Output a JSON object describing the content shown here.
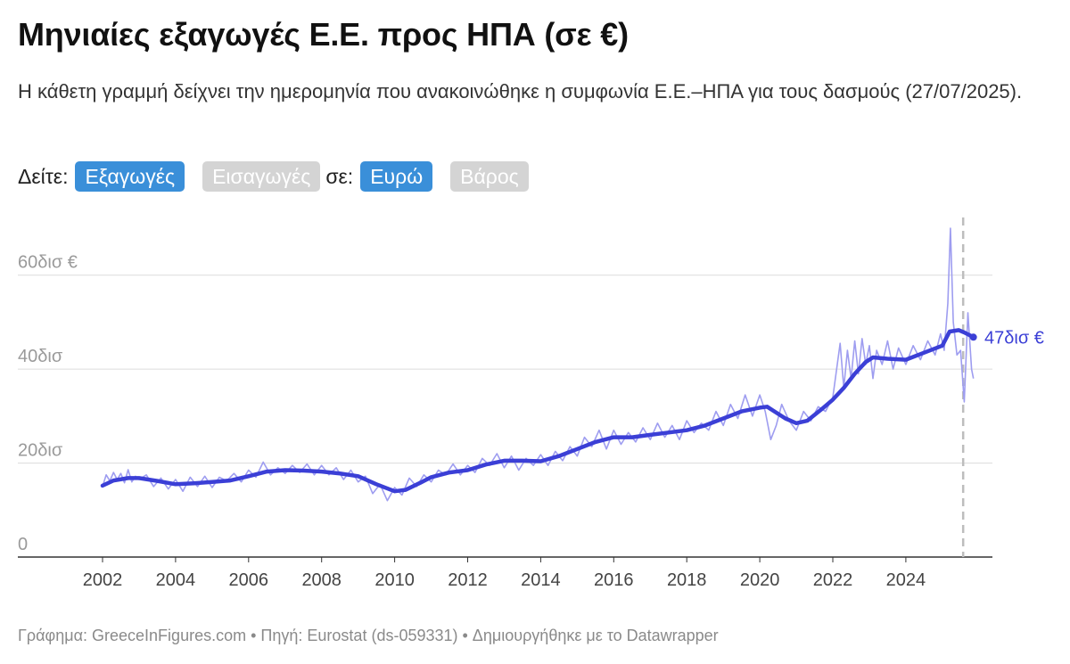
{
  "header": {
    "title": "Μηνιαίες εξαγωγές Ε.Ε. προς ΗΠΑ (σε €)",
    "subtitle": "Η κάθετη γραμμή δείχνει την ημερομηνία που ανακοινώθηκε η συμφωνία Ε.Ε.–ΗΠΑ για τους δασμούς (27/07/2025)."
  },
  "controls": {
    "see_label": "Δείτε:",
    "exports_label": "Εξαγωγές",
    "imports_label": "Εισαγωγές",
    "in_label": "σε:",
    "euro_label": "Ευρώ",
    "weight_label": "Βάρος"
  },
  "footer": {
    "text": "Γράφημα: GreeceInFigures.com • Πηγή: Eurostat (ds-059331) • Δημιουργήθηκε με το Datawrapper"
  },
  "colors": {
    "line": "#3b3fd6",
    "line_light": "#9e9df0",
    "active_button": "#3a8fd9",
    "inactive_button": "#d4d4d4"
  },
  "chart_data": {
    "type": "line",
    "xlim": [
      2000.1,
      2026.5
    ],
    "ylim": [
      0,
      70
    ],
    "y_ticks": [
      {
        "value": 0,
        "label": "0"
      },
      {
        "value": 20,
        "label": "20δισ"
      },
      {
        "value": 40,
        "label": "40δισ"
      },
      {
        "value": 60,
        "label": "60δισ €"
      }
    ],
    "x_ticks": [
      {
        "value": 2002,
        "label": "2002"
      },
      {
        "value": 2004,
        "label": "2004"
      },
      {
        "value": 2006,
        "label": "2006"
      },
      {
        "value": 2008,
        "label": "2008"
      },
      {
        "value": 2010,
        "label": "2010"
      },
      {
        "value": 2012,
        "label": "2012"
      },
      {
        "value": 2014,
        "label": "2014"
      },
      {
        "value": 2016,
        "label": "2016"
      },
      {
        "value": 2018,
        "label": "2018"
      },
      {
        "value": 2020,
        "label": "2020"
      },
      {
        "value": 2022,
        "label": "2022"
      },
      {
        "value": 2024,
        "label": "2024"
      }
    ],
    "event_line": {
      "x": 2025.57,
      "date": "27/07/2025"
    },
    "end_label": "47δισ €",
    "series": [
      {
        "role": "trend",
        "points": [
          [
            2002.0,
            15.2
          ],
          [
            2002.3,
            16.3
          ],
          [
            2002.7,
            16.8
          ],
          [
            2003.0,
            16.8
          ],
          [
            2003.5,
            16.2
          ],
          [
            2004.0,
            15.5
          ],
          [
            2004.5,
            15.7
          ],
          [
            2005.0,
            16.0
          ],
          [
            2005.5,
            16.3
          ],
          [
            2006.0,
            17.2
          ],
          [
            2006.5,
            18.2
          ],
          [
            2007.0,
            18.5
          ],
          [
            2007.5,
            18.4
          ],
          [
            2008.0,
            18.2
          ],
          [
            2008.5,
            17.8
          ],
          [
            2009.0,
            17.2
          ],
          [
            2009.5,
            15.5
          ],
          [
            2010.0,
            14.0
          ],
          [
            2010.3,
            14.3
          ],
          [
            2010.7,
            15.8
          ],
          [
            2011.0,
            17.0
          ],
          [
            2011.5,
            18.0
          ],
          [
            2012.0,
            18.5
          ],
          [
            2012.5,
            19.7
          ],
          [
            2013.0,
            20.5
          ],
          [
            2013.5,
            20.5
          ],
          [
            2014.0,
            20.4
          ],
          [
            2014.5,
            21.5
          ],
          [
            2015.0,
            23.0
          ],
          [
            2015.5,
            24.5
          ],
          [
            2016.0,
            25.5
          ],
          [
            2016.5,
            25.5
          ],
          [
            2017.0,
            26.0
          ],
          [
            2017.5,
            26.5
          ],
          [
            2018.0,
            27.0
          ],
          [
            2018.5,
            28.0
          ],
          [
            2019.0,
            29.5
          ],
          [
            2019.5,
            31.0
          ],
          [
            2020.0,
            31.8
          ],
          [
            2020.2,
            32.0
          ],
          [
            2020.4,
            31.0
          ],
          [
            2020.7,
            29.5
          ],
          [
            2021.0,
            28.5
          ],
          [
            2021.3,
            29.0
          ],
          [
            2021.7,
            31.5
          ],
          [
            2022.0,
            33.5
          ],
          [
            2022.3,
            36.0
          ],
          [
            2022.6,
            39.0
          ],
          [
            2022.9,
            41.5
          ],
          [
            2023.1,
            42.5
          ],
          [
            2023.5,
            42.2
          ],
          [
            2024.0,
            42.0
          ],
          [
            2024.5,
            43.5
          ],
          [
            2025.0,
            45.0
          ],
          [
            2025.2,
            48.0
          ],
          [
            2025.45,
            48.3
          ],
          [
            2025.6,
            47.8
          ],
          [
            2025.85,
            46.8
          ]
        ]
      },
      {
        "role": "monthly",
        "points": [
          [
            2002.0,
            15.0
          ],
          [
            2002.1,
            17.5
          ],
          [
            2002.2,
            16.2
          ],
          [
            2002.3,
            18.0
          ],
          [
            2002.4,
            16.5
          ],
          [
            2002.5,
            17.8
          ],
          [
            2002.6,
            15.8
          ],
          [
            2002.7,
            18.6
          ],
          [
            2002.8,
            16.0
          ],
          [
            2002.9,
            17.2
          ],
          [
            2003.0,
            16.5
          ],
          [
            2003.2,
            17.5
          ],
          [
            2003.4,
            15.0
          ],
          [
            2003.6,
            16.8
          ],
          [
            2003.8,
            14.5
          ],
          [
            2004.0,
            16.5
          ],
          [
            2004.2,
            14.0
          ],
          [
            2004.4,
            17.0
          ],
          [
            2004.6,
            15.0
          ],
          [
            2004.8,
            17.2
          ],
          [
            2005.0,
            14.8
          ],
          [
            2005.2,
            17.0
          ],
          [
            2005.4,
            16.2
          ],
          [
            2005.6,
            17.8
          ],
          [
            2005.8,
            16.0
          ],
          [
            2006.0,
            18.5
          ],
          [
            2006.2,
            17.0
          ],
          [
            2006.4,
            20.2
          ],
          [
            2006.6,
            17.5
          ],
          [
            2006.8,
            19.0
          ],
          [
            2007.0,
            17.8
          ],
          [
            2007.2,
            19.5
          ],
          [
            2007.4,
            18.0
          ],
          [
            2007.6,
            19.8
          ],
          [
            2007.8,
            17.5
          ],
          [
            2008.0,
            19.5
          ],
          [
            2008.2,
            17.5
          ],
          [
            2008.4,
            19.0
          ],
          [
            2008.6,
            16.5
          ],
          [
            2008.8,
            18.5
          ],
          [
            2009.0,
            16.0
          ],
          [
            2009.2,
            17.2
          ],
          [
            2009.4,
            13.5
          ],
          [
            2009.6,
            15.5
          ],
          [
            2009.8,
            12.0
          ],
          [
            2010.0,
            14.8
          ],
          [
            2010.2,
            13.2
          ],
          [
            2010.4,
            16.8
          ],
          [
            2010.6,
            15.0
          ],
          [
            2010.8,
            17.5
          ],
          [
            2011.0,
            16.0
          ],
          [
            2011.2,
            18.5
          ],
          [
            2011.4,
            17.5
          ],
          [
            2011.6,
            19.8
          ],
          [
            2011.8,
            17.5
          ],
          [
            2012.0,
            19.5
          ],
          [
            2012.2,
            18.0
          ],
          [
            2012.4,
            21.0
          ],
          [
            2012.6,
            19.5
          ],
          [
            2012.8,
            22.0
          ],
          [
            2013.0,
            19.0
          ],
          [
            2013.2,
            21.5
          ],
          [
            2013.4,
            18.5
          ],
          [
            2013.6,
            21.0
          ],
          [
            2013.8,
            19.5
          ],
          [
            2014.0,
            21.8
          ],
          [
            2014.2,
            19.5
          ],
          [
            2014.4,
            22.5
          ],
          [
            2014.6,
            20.5
          ],
          [
            2014.8,
            23.5
          ],
          [
            2015.0,
            21.5
          ],
          [
            2015.2,
            25.5
          ],
          [
            2015.4,
            23.5
          ],
          [
            2015.6,
            27.0
          ],
          [
            2015.8,
            23.0
          ],
          [
            2016.0,
            27.0
          ],
          [
            2016.2,
            24.0
          ],
          [
            2016.4,
            26.5
          ],
          [
            2016.6,
            24.5
          ],
          [
            2016.8,
            27.5
          ],
          [
            2017.0,
            25.0
          ],
          [
            2017.2,
            28.5
          ],
          [
            2017.4,
            25.5
          ],
          [
            2017.6,
            28.0
          ],
          [
            2017.8,
            25.0
          ],
          [
            2018.0,
            29.0
          ],
          [
            2018.2,
            26.5
          ],
          [
            2018.4,
            28.5
          ],
          [
            2018.6,
            27.0
          ],
          [
            2018.8,
            31.0
          ],
          [
            2019.0,
            28.0
          ],
          [
            2019.2,
            32.5
          ],
          [
            2019.4,
            29.5
          ],
          [
            2019.6,
            34.5
          ],
          [
            2019.8,
            30.0
          ],
          [
            2020.0,
            34.5
          ],
          [
            2020.15,
            31.0
          ],
          [
            2020.3,
            25.0
          ],
          [
            2020.45,
            28.0
          ],
          [
            2020.6,
            32.5
          ],
          [
            2020.8,
            29.0
          ],
          [
            2021.0,
            27.0
          ],
          [
            2021.2,
            31.0
          ],
          [
            2021.4,
            29.0
          ],
          [
            2021.6,
            32.0
          ],
          [
            2021.8,
            31.0
          ],
          [
            2022.0,
            34.0
          ],
          [
            2022.2,
            45.5
          ],
          [
            2022.3,
            36.0
          ],
          [
            2022.4,
            44.0
          ],
          [
            2022.5,
            38.0
          ],
          [
            2022.6,
            46.0
          ],
          [
            2022.7,
            39.0
          ],
          [
            2022.8,
            46.5
          ],
          [
            2022.9,
            41.0
          ],
          [
            2023.0,
            45.0
          ],
          [
            2023.1,
            38.0
          ],
          [
            2023.2,
            44.0
          ],
          [
            2023.35,
            41.0
          ],
          [
            2023.5,
            46.0
          ],
          [
            2023.65,
            40.0
          ],
          [
            2023.8,
            44.5
          ],
          [
            2024.0,
            41.0
          ],
          [
            2024.2,
            45.0
          ],
          [
            2024.4,
            42.0
          ],
          [
            2024.6,
            46.0
          ],
          [
            2024.8,
            43.0
          ],
          [
            2024.95,
            47.5
          ],
          [
            2025.05,
            44.0
          ],
          [
            2025.15,
            54.0
          ],
          [
            2025.22,
            70.0
          ],
          [
            2025.3,
            50.0
          ],
          [
            2025.4,
            43.0
          ],
          [
            2025.5,
            44.0
          ],
          [
            2025.6,
            33.0
          ],
          [
            2025.7,
            52.0
          ],
          [
            2025.8,
            40.0
          ],
          [
            2025.85,
            38.0
          ]
        ]
      }
    ]
  }
}
